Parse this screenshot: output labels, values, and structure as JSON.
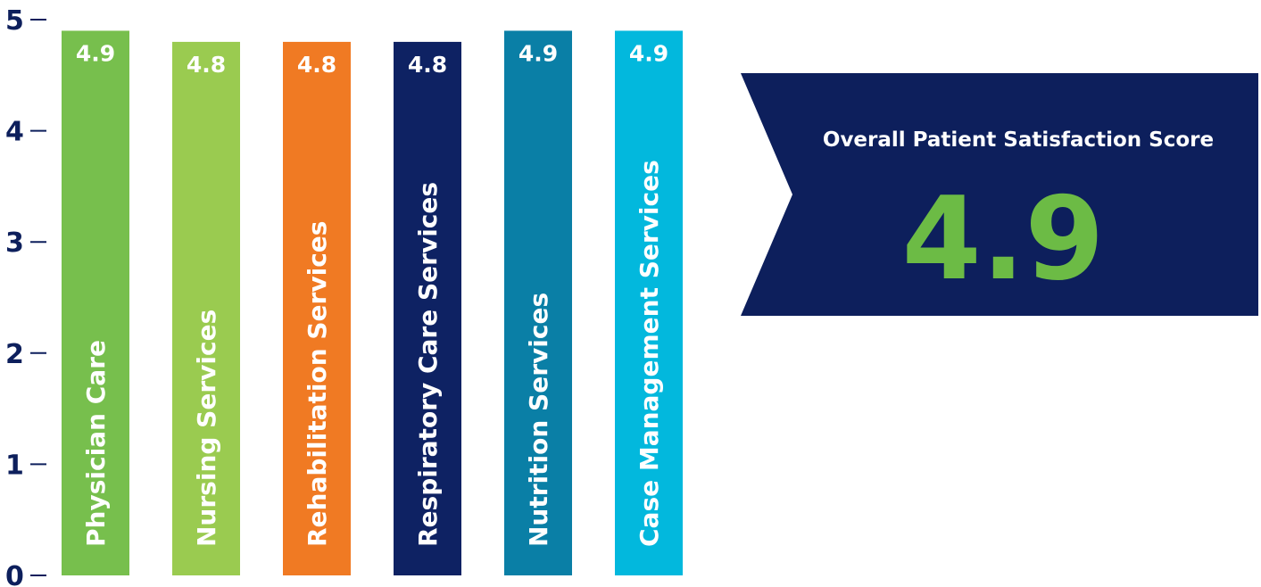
{
  "chart_data": {
    "type": "bar",
    "title": "",
    "xlabel": "",
    "ylabel": "",
    "ylim": [
      0,
      5
    ],
    "yticks": [
      0,
      1,
      2,
      3,
      4,
      5
    ],
    "grid": false,
    "categories": [
      "Physician Care",
      "Nursing Services",
      "Rehabilitation Services",
      "Respiratory Care Services",
      "Nutrition Services",
      "Case Management Services"
    ],
    "values": [
      4.9,
      4.8,
      4.8,
      4.8,
      4.9,
      4.9
    ],
    "value_labels": [
      "4.9",
      "4.8",
      "4.8",
      "4.8",
      "4.9",
      "4.9"
    ],
    "colors": [
      "#77bf4d",
      "#9acb50",
      "#f07a23",
      "#0e2263",
      "#0a7fa6",
      "#02b8dd"
    ]
  },
  "overall": {
    "title": "Overall Patient Satisfaction Score",
    "score": "4.9",
    "banner_color": "#0d1f5c",
    "score_color": "#6cbb45"
  }
}
